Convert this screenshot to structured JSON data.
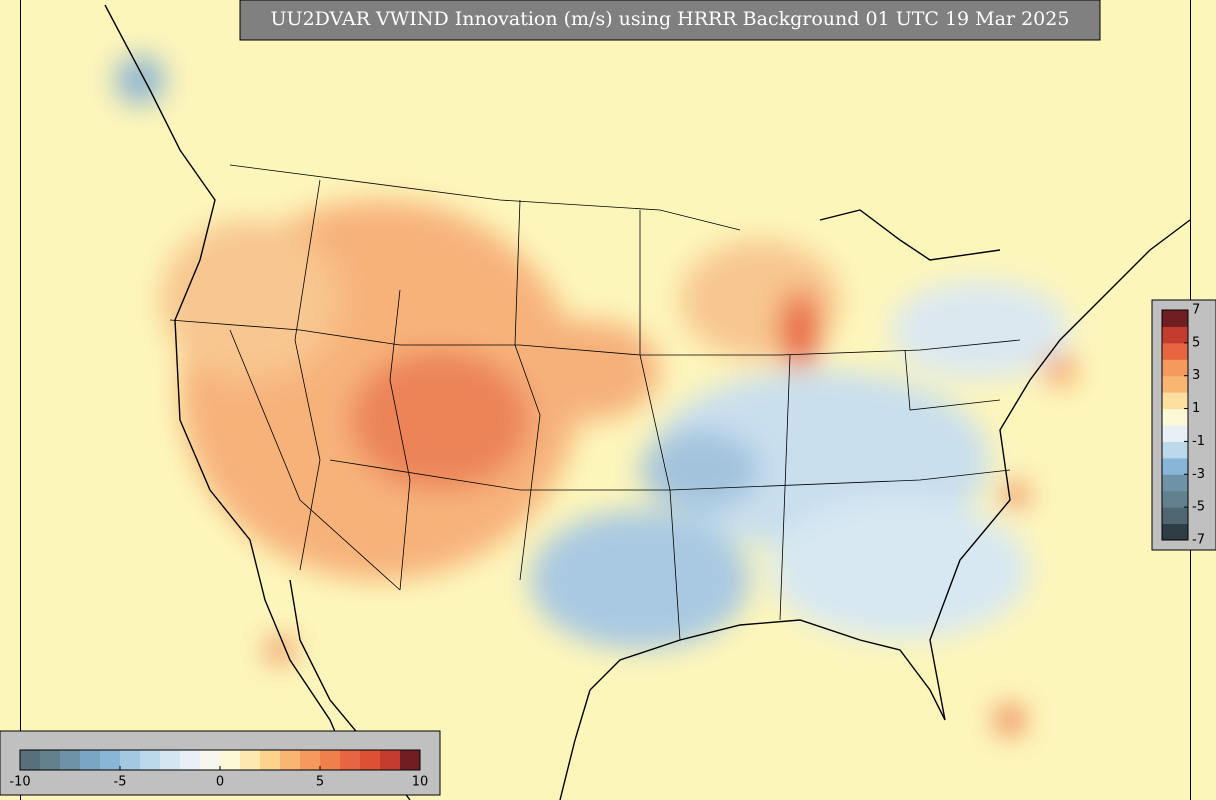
{
  "title": "UU2DVAR VWIND Innovation (m/s) using HRRR Background 01 UTC 19 Mar 2025",
  "colorbar_bottom": {
    "lim": [
      -10,
      10
    ],
    "ticks": [
      -10,
      -5,
      0,
      5,
      10
    ],
    "colors": [
      "#56707c",
      "#62808e",
      "#6e93a8",
      "#7aa6c4",
      "#89b6d6",
      "#a3c8e2",
      "#bcd9ec",
      "#d3e6f2",
      "#e6f0f5",
      "#f7f7ee",
      "#fdf8d6",
      "#fde9b0",
      "#fcd28c",
      "#f9b572",
      "#f59a5c",
      "#ef7f4b",
      "#e8663f",
      "#dd5034",
      "#c43c2f",
      "#6f1f22"
    ]
  },
  "colorbar_right": {
    "lim": [
      -7,
      7
    ],
    "ticks": [
      7,
      5,
      3,
      1,
      -1,
      -3,
      -5,
      -7
    ],
    "colors": [
      "#2f3d44",
      "#4f6670",
      "#62808e",
      "#6e93a8",
      "#89b6d6",
      "#bcd9ec",
      "#e6f0f5",
      "#fdf8d6",
      "#fde0a0",
      "#f9b572",
      "#f59a5c",
      "#e8663f",
      "#c43c2f",
      "#6f1f22"
    ]
  }
}
